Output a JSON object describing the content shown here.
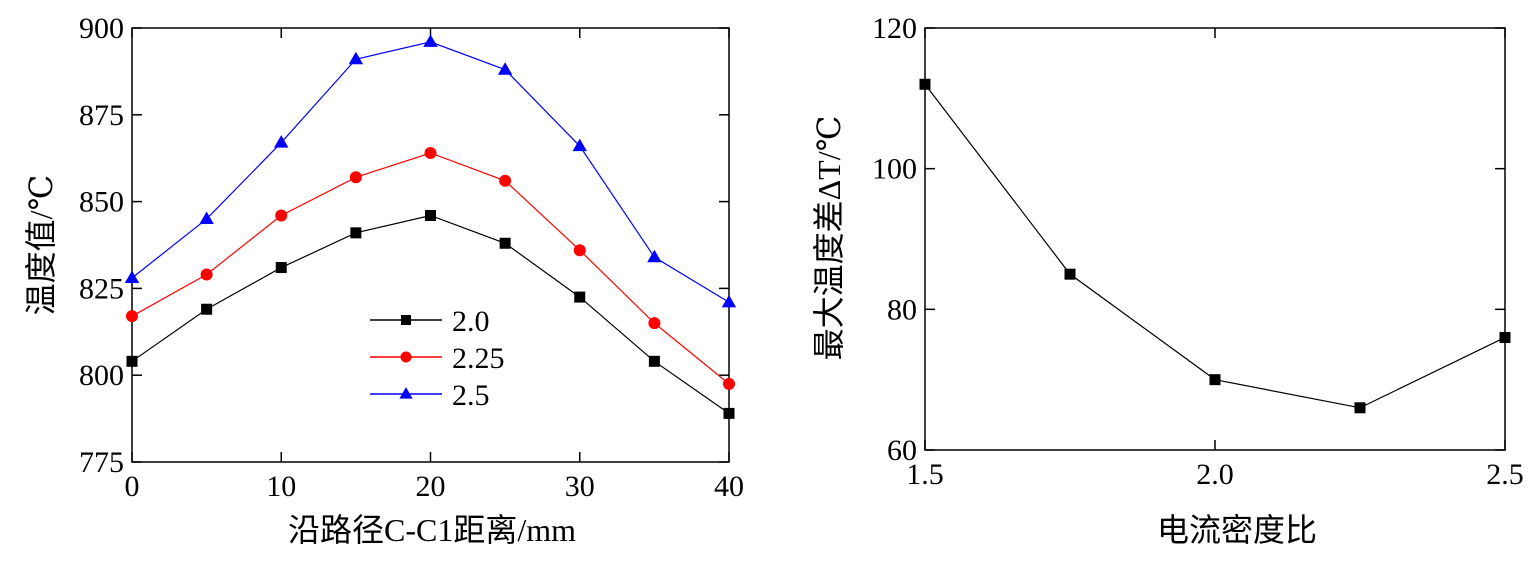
{
  "chart_data": [
    {
      "type": "line",
      "xlabel": "沿路径C-C1距离/mm",
      "ylabel": "温度值/℃",
      "xlim": [
        0,
        40
      ],
      "ylim": [
        775,
        900
      ],
      "xticks": [
        "0",
        "10",
        "20",
        "30",
        "40"
      ],
      "yticks": [
        "775",
        "800",
        "825",
        "850",
        "875",
        "900"
      ],
      "x": [
        0,
        5,
        10,
        15,
        20,
        25,
        30,
        35,
        40
      ],
      "legend_position": "center-left",
      "series": [
        {
          "name": "2.0",
          "color": "#000000",
          "marker": "square",
          "values": [
            804,
            819,
            831,
            841,
            846,
            838,
            822.5,
            804,
            789
          ]
        },
        {
          "name": "2.25",
          "color": "#ff0000",
          "marker": "circle",
          "values": [
            817,
            829,
            846,
            857,
            864,
            856,
            836,
            815,
            797.5
          ]
        },
        {
          "name": "2.5",
          "color": "#0000ff",
          "marker": "triangle",
          "values": [
            828,
            845,
            867,
            891,
            896,
            888,
            866,
            834,
            821
          ]
        }
      ]
    },
    {
      "type": "line",
      "xlabel": "电流密度比",
      "ylabel": "最大温度差ΔT/℃",
      "xlim": [
        1.5,
        2.5
      ],
      "ylim": [
        60,
        120
      ],
      "xticks": [
        "1.5",
        "2.0",
        "2.5"
      ],
      "yticks": [
        "60",
        "80",
        "100",
        "120"
      ],
      "x": [
        1.5,
        1.75,
        2.0,
        2.25,
        2.5
      ],
      "series": [
        {
          "color": "#000000",
          "marker": "square",
          "values": [
            112,
            85,
            70,
            66,
            76
          ]
        }
      ]
    }
  ]
}
